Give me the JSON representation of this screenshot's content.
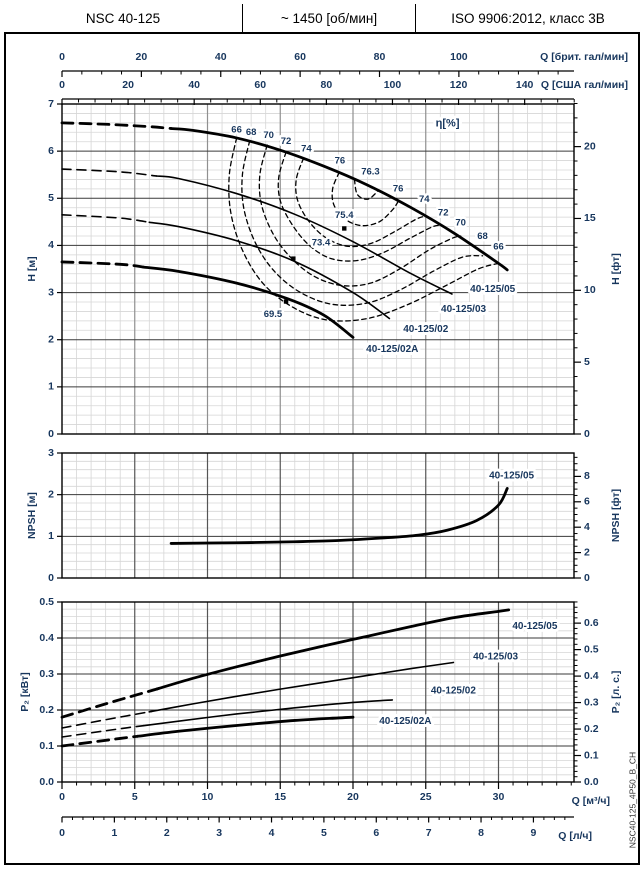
{
  "header": {
    "model": "NSC 40-125",
    "speed": "~ 1450 [об/мин]",
    "standard": "ISO 9906:2012, класс 3В"
  },
  "side_code": "NSC40-125_4P50_B_CH",
  "colors": {
    "text": "#17365d",
    "curve": "#000000",
    "frame": "#000000",
    "grid_minor": "#d6d6d6",
    "grid_major_v_head": "#909090",
    "grid_major_v": "#555555",
    "grid_major_h": "#3a3a3a"
  },
  "q_axes": {
    "imp": {
      "label": "Q [брит. гал/мин]",
      "tick_labels": [
        "0",
        "20",
        "40",
        "60",
        "80",
        "100"
      ],
      "tick_values": [
        0,
        20,
        40,
        60,
        80,
        100
      ],
      "minor_step": 5,
      "m3h_per_unit": 0.27277
    },
    "us": {
      "label": "Q [США гал/мин]",
      "tick_labels": [
        "0",
        "20",
        "40",
        "60",
        "80",
        "100",
        "120",
        "140"
      ],
      "tick_values": [
        0,
        20,
        40,
        60,
        80,
        100,
        120,
        140
      ],
      "minor_step": 5,
      "m3h_per_unit": 0.22712
    },
    "m3h": {
      "label": "Q [м³/ч]",
      "tick_labels": [
        "0",
        "5",
        "10",
        "15",
        "20",
        "25",
        "30"
      ],
      "tick_values": [
        0,
        5,
        10,
        15,
        20,
        25,
        30
      ],
      "minor_step": 1,
      "m3h_per_unit": 1
    },
    "lh": {
      "label": "Q [л/ч]",
      "tick_labels": [
        "0",
        "1",
        "2",
        "3",
        "4",
        "5",
        "6",
        "7",
        "8",
        "9"
      ],
      "tick_values": [
        0,
        1,
        2,
        3,
        4,
        5,
        6,
        7,
        8,
        9
      ],
      "minor_step": 0.2,
      "m3h_per_unit": 3.6
    }
  },
  "chart_data": [
    {
      "id": "head",
      "type": "line",
      "ylabel_left": "H [м]",
      "ylabel_right": "H [фт]",
      "ylim": [
        0,
        7
      ],
      "left_ticks": [
        "0",
        "1",
        "2",
        "3",
        "4",
        "5",
        "6",
        "7"
      ],
      "left_tick_values": [
        0,
        1,
        2,
        3,
        4,
        5,
        6,
        7
      ],
      "right_ticks": [
        "0",
        "5",
        "10",
        "15",
        "20"
      ],
      "right_tick_values": [
        0,
        5,
        10,
        15,
        20
      ],
      "right_minor_step": 1,
      "right_unit_factor": 0.3048,
      "eta_title": {
        "text": "η[%]",
        "q": 26.5,
        "h": 6.58
      },
      "curves": [
        {
          "name": "40-125/05",
          "thick": true,
          "dash_until": 7.5,
          "label_xy": [
            29.6,
            3.07
          ],
          "points": [
            [
              0,
              6.6
            ],
            [
              3,
              6.57
            ],
            [
              6,
              6.52
            ],
            [
              9,
              6.44
            ],
            [
              12,
              6.28
            ],
            [
              15,
              6.02
            ],
            [
              18,
              5.68
            ],
            [
              21,
              5.28
            ],
            [
              24,
              4.8
            ],
            [
              27,
              4.25
            ],
            [
              30,
              3.62
            ],
            [
              30.6,
              3.48
            ]
          ]
        },
        {
          "name": "40-125/03",
          "thick": false,
          "dash_until": 6.5,
          "label_xy": [
            27.6,
            2.64
          ],
          "points": [
            [
              0,
              5.62
            ],
            [
              4,
              5.56
            ],
            [
              8,
              5.42
            ],
            [
              12,
              5.1
            ],
            [
              16,
              4.66
            ],
            [
              20,
              4.08
            ],
            [
              24,
              3.4
            ],
            [
              26.8,
              2.97
            ]
          ]
        },
        {
          "name": "40-125/02",
          "thick": false,
          "dash_until": 6.0,
          "label_xy": [
            25.0,
            2.22
          ],
          "points": [
            [
              0,
              4.65
            ],
            [
              4,
              4.58
            ],
            [
              8,
              4.4
            ],
            [
              12,
              4.1
            ],
            [
              16,
              3.66
            ],
            [
              20,
              3.0
            ],
            [
              22.5,
              2.45
            ]
          ]
        },
        {
          "name": "40-125/02A",
          "thick": true,
          "dash_until": 5.6,
          "label_xy": [
            22.7,
            1.8
          ],
          "points": [
            [
              0,
              3.65
            ],
            [
              4,
              3.6
            ],
            [
              8,
              3.45
            ],
            [
              12,
              3.2
            ],
            [
              15.5,
              2.87
            ],
            [
              18,
              2.52
            ],
            [
              20,
              2.05
            ]
          ]
        }
      ],
      "efficiency_contours": [
        {
          "value": "66",
          "points": [
            [
              12.0,
              6.28
            ],
            [
              11.5,
              5.5
            ],
            [
              11.6,
              4.7
            ],
            [
              12.4,
              3.9
            ],
            [
              13.8,
              3.2
            ],
            [
              15.8,
              2.7
            ],
            [
              18.2,
              2.42
            ],
            [
              21.0,
              2.45
            ],
            [
              23.8,
              2.75
            ],
            [
              26.4,
              3.15
            ],
            [
              28.6,
              3.5
            ],
            [
              30.0,
              3.62
            ]
          ]
        },
        {
          "value": "68",
          "points": [
            [
              12.9,
              6.22
            ],
            [
              12.4,
              5.5
            ],
            [
              12.5,
              4.78
            ],
            [
              13.3,
              4.05
            ],
            [
              14.6,
              3.45
            ],
            [
              16.4,
              3.0
            ],
            [
              18.6,
              2.75
            ],
            [
              21.0,
              2.78
            ],
            [
              23.2,
              3.05
            ],
            [
              25.5,
              3.45
            ],
            [
              27.5,
              3.75
            ],
            [
              28.9,
              3.78
            ]
          ]
        },
        {
          "value": "70",
          "points": [
            [
              14.1,
              6.13
            ],
            [
              13.6,
              5.5
            ],
            [
              13.7,
              4.88
            ],
            [
              14.5,
              4.25
            ],
            [
              15.7,
              3.75
            ],
            [
              17.3,
              3.35
            ],
            [
              19.2,
              3.15
            ],
            [
              21.2,
              3.2
            ],
            [
              23.2,
              3.5
            ],
            [
              25.2,
              3.9
            ],
            [
              26.8,
              4.15
            ],
            [
              27.4,
              4.2
            ]
          ]
        },
        {
          "value": "72",
          "points": [
            [
              15.4,
              5.98
            ],
            [
              14.9,
              5.45
            ],
            [
              15.0,
              4.95
            ],
            [
              15.8,
              4.45
            ],
            [
              17.0,
              4.0
            ],
            [
              18.5,
              3.72
            ],
            [
              20.3,
              3.68
            ],
            [
              22.1,
              3.85
            ],
            [
              23.9,
              4.15
            ],
            [
              25.5,
              4.4
            ],
            [
              26.1,
              4.42
            ]
          ]
        },
        {
          "value": "74",
          "points": [
            [
              16.6,
              5.85
            ],
            [
              16.1,
              5.4
            ],
            [
              16.2,
              4.95
            ],
            [
              17.0,
              4.5
            ],
            [
              18.2,
              4.15
            ],
            [
              19.7,
              3.98
            ],
            [
              21.3,
              4.05
            ],
            [
              22.9,
              4.3
            ],
            [
              24.3,
              4.55
            ],
            [
              24.9,
              4.62
            ]
          ]
        },
        {
          "value": "76",
          "points": [
            [
              19.05,
              5.55
            ],
            [
              18.6,
              5.2
            ],
            [
              18.7,
              4.85
            ],
            [
              19.5,
              4.55
            ],
            [
              20.6,
              4.42
            ],
            [
              21.8,
              4.5
            ],
            [
              22.7,
              4.75
            ],
            [
              23.1,
              4.93
            ]
          ]
        },
        {
          "value": "76.3",
          "points": [
            [
              20.1,
              5.4
            ],
            [
              20.3,
              5.08
            ],
            [
              21.0,
              4.98
            ],
            [
              21.6,
              5.12
            ],
            [
              21.7,
              5.18
            ]
          ]
        }
      ],
      "efficiency_labels": [
        {
          "text": "66",
          "q": 12.0,
          "h": 6.45
        },
        {
          "text": "68",
          "q": 13.0,
          "h": 6.4
        },
        {
          "text": "70",
          "q": 14.2,
          "h": 6.33
        },
        {
          "text": "72",
          "q": 15.4,
          "h": 6.2
        },
        {
          "text": "74",
          "q": 16.8,
          "h": 6.05
        },
        {
          "text": "76",
          "q": 19.1,
          "h": 5.79
        },
        {
          "text": "76.3",
          "q": 21.2,
          "h": 5.56
        },
        {
          "text": "76",
          "q": 23.1,
          "h": 5.2
        },
        {
          "text": "74",
          "q": 24.9,
          "h": 4.97
        },
        {
          "text": "72",
          "q": 26.2,
          "h": 4.69
        },
        {
          "text": "70",
          "q": 27.4,
          "h": 4.48
        },
        {
          "text": "68",
          "q": 28.9,
          "h": 4.19
        },
        {
          "text": "66",
          "q": 30.0,
          "h": 3.97
        }
      ],
      "bep_markers": [
        {
          "label": "75.4",
          "label_q": 19.4,
          "label_h": 4.63,
          "q": 19.4,
          "h": 4.36
        },
        {
          "label": "73.4",
          "label_q": 17.8,
          "label_h": 4.05,
          "q": 15.9,
          "h": 3.72
        },
        {
          "label": "69.5",
          "label_q": 14.5,
          "label_h": 2.54,
          "q": 15.4,
          "h": 2.81
        }
      ]
    },
    {
      "id": "npsh",
      "type": "line",
      "ylabel_left": "NPSH [м]",
      "ylabel_right": "NPSH [фт]",
      "ylim": [
        0,
        3
      ],
      "left_ticks": [
        "0",
        "1",
        "2",
        "3"
      ],
      "left_tick_values": [
        0,
        1,
        2,
        3
      ],
      "right_ticks": [
        "0",
        "2",
        "4",
        "6",
        "8"
      ],
      "right_tick_values": [
        0,
        2,
        4,
        6,
        8
      ],
      "right_minor_step": 0.5,
      "right_unit_factor": 0.3048,
      "curves": [
        {
          "name": "40-125/05",
          "thick": true,
          "dash_until": null,
          "label_xy": [
            30.9,
            2.45
          ],
          "points": [
            [
              7.5,
              0.83
            ],
            [
              10,
              0.84
            ],
            [
              13,
              0.85
            ],
            [
              16,
              0.87
            ],
            [
              19,
              0.9
            ],
            [
              22,
              0.96
            ],
            [
              24.5,
              1.03
            ],
            [
              26.5,
              1.15
            ],
            [
              28.5,
              1.38
            ],
            [
              30,
              1.75
            ],
            [
              30.6,
              2.15
            ]
          ]
        }
      ]
    },
    {
      "id": "power",
      "type": "line",
      "ylabel_left": "P₂ [кВт]",
      "ylabel_right": "P₂ [л. с.]",
      "ylim": [
        0,
        0.5
      ],
      "left_ticks": [
        "0.0",
        "0.1",
        "0.2",
        "0.3",
        "0.4",
        "0.5"
      ],
      "left_tick_values": [
        0,
        0.1,
        0.2,
        0.3,
        0.4,
        0.5
      ],
      "right_ticks": [
        "0.0",
        "0.1",
        "0.2",
        "0.3",
        "0.4",
        "0.5",
        "0.6"
      ],
      "right_tick_values": [
        0,
        0.1,
        0.2,
        0.3,
        0.4,
        0.5,
        0.6
      ],
      "right_minor_step": 0.02,
      "right_unit_factor": 0.7355,
      "curves": [
        {
          "name": "40-125/05",
          "thick": true,
          "dash_until": 6.5,
          "label_xy": [
            32.5,
            0.433
          ],
          "points": [
            [
              0,
              0.18
            ],
            [
              3,
              0.217
            ],
            [
              6.5,
              0.258
            ],
            [
              9,
              0.288
            ],
            [
              12,
              0.32
            ],
            [
              15,
              0.35
            ],
            [
              18,
              0.378
            ],
            [
              21,
              0.405
            ],
            [
              24,
              0.432
            ],
            [
              27,
              0.457
            ],
            [
              30,
              0.474
            ],
            [
              30.7,
              0.478
            ]
          ]
        },
        {
          "name": "40-125/03",
          "thick": false,
          "dash_until": 6.0,
          "label_xy": [
            29.8,
            0.347
          ],
          "points": [
            [
              0,
              0.15
            ],
            [
              3,
              0.173
            ],
            [
              6,
              0.195
            ],
            [
              9,
              0.217
            ],
            [
              12,
              0.238
            ],
            [
              15,
              0.258
            ],
            [
              18,
              0.277
            ],
            [
              21,
              0.296
            ],
            [
              24,
              0.315
            ],
            [
              26.9,
              0.332
            ]
          ]
        },
        {
          "name": "40-125/02",
          "thick": false,
          "dash_until": 5.6,
          "label_xy": [
            26.9,
            0.253
          ],
          "points": [
            [
              0,
              0.125
            ],
            [
              4,
              0.148
            ],
            [
              8,
              0.169
            ],
            [
              12,
              0.189
            ],
            [
              16,
              0.206
            ],
            [
              20,
              0.221
            ],
            [
              22.7,
              0.228
            ]
          ]
        },
        {
          "name": "40-125/02A",
          "thick": true,
          "dash_until": 5.2,
          "label_xy": [
            23.6,
            0.169
          ],
          "points": [
            [
              0,
              0.1
            ],
            [
              4,
              0.121
            ],
            [
              8,
              0.141
            ],
            [
              12,
              0.157
            ],
            [
              16,
              0.171
            ],
            [
              19,
              0.178
            ],
            [
              20,
              0.18
            ]
          ]
        }
      ]
    }
  ]
}
